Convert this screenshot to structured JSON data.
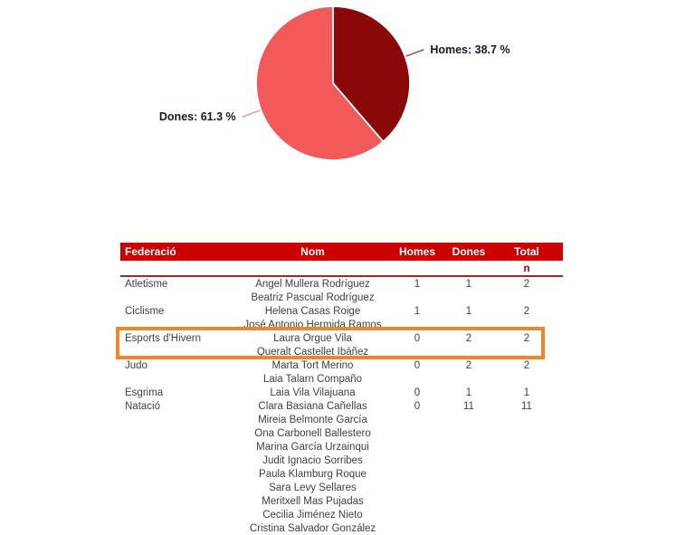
{
  "chart_data": {
    "type": "pie",
    "title": "",
    "start_angle_deg": 0,
    "direction": "clockwise",
    "legend_position": "none",
    "label_color": "#16162E",
    "slices": [
      {
        "label": "Homes",
        "value": 38.7,
        "display": "Homes: 38.7 %",
        "color": "#8B0808",
        "leader_color": "#A04040"
      },
      {
        "label": "Dones",
        "value": 61.3,
        "display": "Dones: 61.3 %",
        "color": "#F25A5A",
        "leader_color": "#F28C8C"
      }
    ]
  },
  "colors": {
    "header_bg": "#CC0000",
    "header_text": "#FFFFFF",
    "subheader_text": "#CC0000",
    "rule": "#9B2B2B",
    "body_text": "#3F3F3F",
    "highlight": "#F0862C"
  },
  "table": {
    "headers": [
      "Federació",
      "Nom",
      "Homes",
      "Dones",
      "Total"
    ],
    "subheader": "n",
    "rows": [
      {
        "federacio": "Atletisme",
        "nom": "Angel Mullera Rodríguez",
        "homes": "1",
        "dones": "1",
        "total": "2",
        "highlight": false
      },
      {
        "federacio": "",
        "nom": "Beatriz Pascual Rodríguez",
        "homes": "",
        "dones": "",
        "total": "",
        "highlight": false
      },
      {
        "federacio": "Ciclisme",
        "nom": "Helena Casas Roige",
        "homes": "1",
        "dones": "1",
        "total": "2",
        "highlight": false
      },
      {
        "federacio": "",
        "nom": "José Antonio Hermida Ramos",
        "homes": "",
        "dones": "",
        "total": "",
        "highlight": false
      },
      {
        "federacio": "Esports d'Hivern",
        "nom": "Laura Orgue Vila",
        "homes": "0",
        "dones": "2",
        "total": "2",
        "highlight": true
      },
      {
        "federacio": "",
        "nom": "Queralt Castellet Ibáñez",
        "homes": "",
        "dones": "",
        "total": "",
        "highlight": true
      },
      {
        "federacio": "Judo",
        "nom": "Marta Tort Merino",
        "homes": "0",
        "dones": "2",
        "total": "2",
        "highlight": false
      },
      {
        "federacio": "",
        "nom": "Laia Talarn Compaño",
        "homes": "",
        "dones": "",
        "total": "",
        "highlight": false
      },
      {
        "federacio": "Esgrima",
        "nom": "Laia Vila Vilajuana",
        "homes": "0",
        "dones": "1",
        "total": "1",
        "highlight": false
      },
      {
        "federacio": "Natació",
        "nom": "Clara Basiana Cañellas",
        "homes": "0",
        "dones": "11",
        "total": "11",
        "highlight": false
      },
      {
        "federacio": "",
        "nom": "Mireia Belmonte García",
        "homes": "",
        "dones": "",
        "total": "",
        "highlight": false
      },
      {
        "federacio": "",
        "nom": "Ona Carbonell Ballestero",
        "homes": "",
        "dones": "",
        "total": "",
        "highlight": false
      },
      {
        "federacio": "",
        "nom": "Marina García Urzainqui",
        "homes": "",
        "dones": "",
        "total": "",
        "highlight": false
      },
      {
        "federacio": "",
        "nom": "Judit Ignacio Sorribes",
        "homes": "",
        "dones": "",
        "total": "",
        "highlight": false
      },
      {
        "federacio": "",
        "nom": "Paula Klamburg Roque",
        "homes": "",
        "dones": "",
        "total": "",
        "highlight": false
      },
      {
        "federacio": "",
        "nom": "Sara Levy Sellares",
        "homes": "",
        "dones": "",
        "total": "",
        "highlight": false
      },
      {
        "federacio": "",
        "nom": "Meritxell Mas Pujadas",
        "homes": "",
        "dones": "",
        "total": "",
        "highlight": false
      },
      {
        "federacio": "",
        "nom": "Cecilia Jiménez Nieto",
        "homes": "",
        "dones": "",
        "total": "",
        "highlight": false
      },
      {
        "federacio": "",
        "nom": "Cristina Salvador González",
        "homes": "",
        "dones": "",
        "total": "",
        "highlight": false
      }
    ]
  },
  "annotation": {
    "type": "highlight-box",
    "target": "Esports d'Hivern",
    "color": "#F0862C"
  }
}
